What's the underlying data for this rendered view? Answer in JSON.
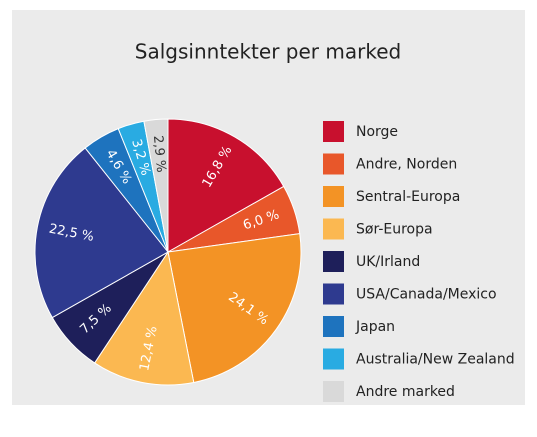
{
  "chart_data": {
    "type": "pie",
    "title": "Salgsinntekter per marked",
    "categories": [
      "Norge",
      "Andre, Norden",
      "Sentral-Europa",
      "Sør-Europa",
      "UK/Irland",
      "USA/Canada/Mexico",
      "Japan",
      "Australia/New Zealand",
      "Andre marked"
    ],
    "values": [
      16.8,
      6.0,
      24.1,
      12.4,
      7.5,
      22.5,
      4.6,
      3.2,
      2.9
    ],
    "value_labels": [
      "16,8 %",
      "6,0 %",
      "24,1 %",
      "12,4 %",
      "7,5 %",
      "22,5 %",
      "4,6 %",
      "3,2 %",
      "2,9 %"
    ],
    "colors": [
      "#c8102e",
      "#e8572a",
      "#f39325",
      "#fbb851",
      "#1e1f5a",
      "#2e3a8f",
      "#1e73be",
      "#29abe2",
      "#d9d9d9"
    ],
    "legend": "right"
  }
}
